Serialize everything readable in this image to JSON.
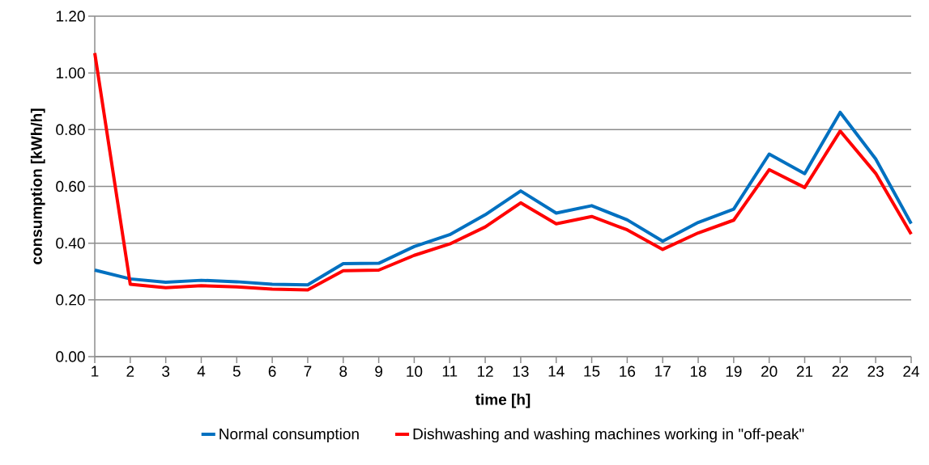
{
  "chart_data": {
    "type": "line",
    "xlabel": "time [h]",
    "ylabel": "consumption [kWh/h]",
    "x": [
      1,
      2,
      3,
      4,
      5,
      6,
      7,
      8,
      9,
      10,
      11,
      12,
      13,
      14,
      15,
      16,
      17,
      18,
      19,
      20,
      21,
      22,
      23,
      24
    ],
    "series": [
      {
        "name": "Normal consumption",
        "color": "#0070c0",
        "values": [
          0.305,
          0.274,
          0.262,
          0.269,
          0.264,
          0.255,
          0.253,
          0.328,
          0.329,
          0.388,
          0.43,
          0.5,
          0.584,
          0.506,
          0.532,
          0.482,
          0.407,
          0.473,
          0.52,
          0.714,
          0.645,
          0.861,
          0.697,
          0.469
        ]
      },
      {
        "name": "Dishwashing and washing machines working in \"off-peak\"",
        "color": "#ff0000",
        "values": [
          1.07,
          0.255,
          0.243,
          0.25,
          0.246,
          0.238,
          0.235,
          0.303,
          0.305,
          0.357,
          0.397,
          0.457,
          0.542,
          0.468,
          0.494,
          0.447,
          0.378,
          0.436,
          0.481,
          0.659,
          0.596,
          0.795,
          0.646,
          0.432
        ]
      }
    ],
    "xlim": [
      1,
      24
    ],
    "xticks": [
      1,
      2,
      3,
      4,
      5,
      6,
      7,
      8,
      9,
      10,
      11,
      12,
      13,
      14,
      15,
      16,
      17,
      18,
      19,
      20,
      21,
      22,
      23,
      24
    ],
    "ylim": [
      0,
      1.2
    ],
    "yticks": [
      {
        "value": 0,
        "label": "0.00"
      },
      {
        "value": 0.2,
        "label": "0.20"
      },
      {
        "value": 0.4,
        "label": "0.40"
      },
      {
        "value": 0.6,
        "label": "0.60"
      },
      {
        "value": 0.8,
        "label": "0.80"
      },
      {
        "value": 1.0,
        "label": "1.00"
      },
      {
        "value": 1.2,
        "label": "1.20"
      }
    ],
    "grid": "y",
    "legend": "bottom",
    "marker": "none",
    "line_style": "solid"
  }
}
